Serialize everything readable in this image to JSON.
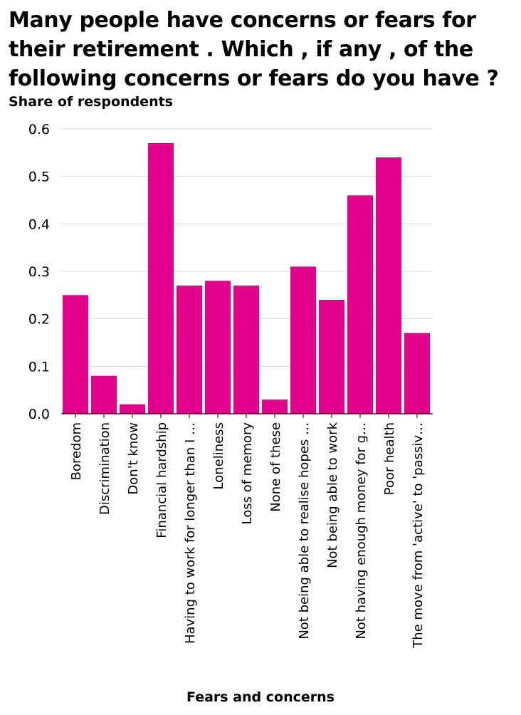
{
  "chart_data": {
    "type": "bar",
    "title": "Many people have concerns or fears for their retirement . Which , if any , of the following concerns or fears do you have ?",
    "xlabel": "Fears and concerns",
    "ylabel": "Share of respondents",
    "ylim": [
      0,
      0.6
    ],
    "yticks": [
      "0.0",
      "0.1",
      "0.2",
      "0.3",
      "0.4",
      "0.5",
      "0.6"
    ],
    "grid": true,
    "color": "#e5008c",
    "categories": [
      "Boredom",
      "Discrimination",
      "Don't know",
      "Financial hardship",
      "Having to work for longer than I …",
      "Loneliness",
      "Loss of memory",
      "None of these",
      "Not being able to realise hopes …",
      "Not being able to work",
      "Not having enough money for g…",
      "Poor health",
      "The move from 'active' to 'passiv…"
    ],
    "values": [
      0.25,
      0.08,
      0.02,
      0.57,
      0.27,
      0.28,
      0.27,
      0.03,
      0.31,
      0.24,
      0.46,
      0.54,
      0.17
    ]
  }
}
